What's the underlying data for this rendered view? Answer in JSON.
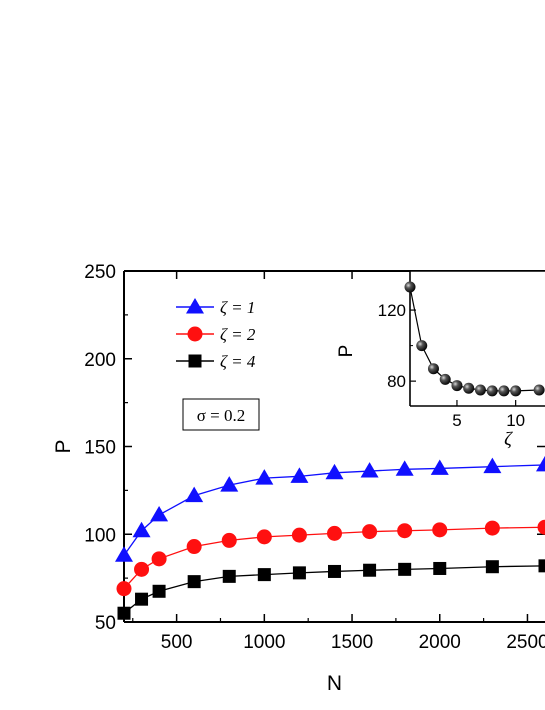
{
  "chart_data": [
    {
      "type": "line",
      "xlabel": "N",
      "ylabel": "P",
      "xlim": [
        200,
        2600
      ],
      "ylim": [
        50,
        250
      ],
      "xticks": [
        500,
        1000,
        1500,
        2000,
        2500
      ],
      "yticks": [
        50,
        100,
        150,
        200,
        250
      ],
      "legend_position": "top-left",
      "annotation": "σ = 0.2",
      "x": [
        200,
        300,
        400,
        600,
        800,
        1000,
        1200,
        1400,
        1600,
        1800,
        2000,
        2300,
        2600
      ],
      "series": [
        {
          "name": "ζ = 1",
          "color": "#1010ff",
          "marker": "triangle",
          "values": [
            88,
            102,
            111,
            122,
            128,
            132,
            133,
            135,
            136,
            137,
            137.5,
            138.5,
            139.5
          ]
        },
        {
          "name": "ζ = 2",
          "color": "#ff1010",
          "marker": "circle",
          "values": [
            69,
            80,
            86,
            93,
            96.5,
            98.5,
            99.5,
            100.5,
            101.5,
            102,
            102.5,
            103.5,
            104
          ]
        },
        {
          "name": "ζ = 4",
          "color": "#000000",
          "marker": "square",
          "values": [
            55,
            63,
            67.5,
            73,
            76,
            77,
            78,
            78.8,
            79.5,
            80,
            80.5,
            81.5,
            82
          ]
        }
      ]
    },
    {
      "type": "line",
      "inset": true,
      "xlabel": "ζ",
      "ylabel": "P",
      "xlim": [
        1,
        12.5
      ],
      "ylim": [
        66,
        142
      ],
      "xticks": [
        5,
        10
      ],
      "yticks": [
        80,
        120
      ],
      "color": "#000000",
      "marker": "sphere",
      "x": [
        1,
        2,
        3,
        4,
        5,
        6,
        7,
        8,
        9,
        10,
        12
      ],
      "values": [
        133,
        100,
        87,
        81,
        77.5,
        76,
        75,
        74.5,
        74.5,
        74.5,
        75
      ]
    }
  ]
}
